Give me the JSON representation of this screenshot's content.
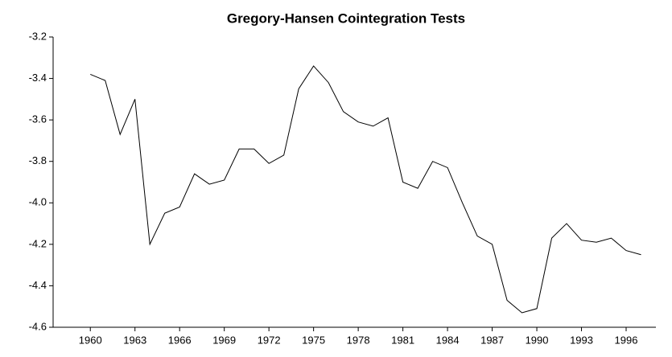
{
  "chart_data": {
    "type": "line",
    "title": "Gregory-Hansen Cointegration Tests",
    "x": [
      1960,
      1961,
      1962,
      1963,
      1964,
      1965,
      1966,
      1967,
      1968,
      1969,
      1970,
      1971,
      1972,
      1973,
      1974,
      1975,
      1976,
      1977,
      1978,
      1979,
      1980,
      1981,
      1982,
      1983,
      1984,
      1985,
      1986,
      1987,
      1988,
      1989,
      1990,
      1991,
      1992,
      1993,
      1994,
      1995,
      1996,
      1997
    ],
    "series": [
      {
        "color": "#000000",
        "values": [
          -3.38,
          -3.41,
          -3.67,
          -3.5,
          -4.2,
          -4.05,
          -4.02,
          -3.86,
          -3.91,
          -3.89,
          -3.74,
          -3.74,
          -3.81,
          -3.77,
          -3.45,
          -3.34,
          -3.42,
          -3.56,
          -3.61,
          -3.63,
          -3.59,
          -3.9,
          -3.93,
          -3.8,
          -3.83,
          -4.0,
          -4.16,
          -4.2,
          -4.47,
          -4.53,
          -4.51,
          -4.17,
          -4.1,
          -4.18,
          -4.19,
          -4.17,
          -4.23,
          -4.25
        ]
      }
    ],
    "xlim": [
      1957.5,
      1998
    ],
    "xticks": [
      1960,
      1963,
      1966,
      1969,
      1972,
      1975,
      1978,
      1981,
      1984,
      1987,
      1990,
      1993,
      1996
    ],
    "ylim": [
      -4.6,
      -3.2
    ],
    "yticks": [
      -3.2,
      -3.4,
      -3.6,
      -3.8,
      {
        "value": -4,
        "label": "-4.0"
      },
      -4.2,
      -4.4,
      -4.6
    ],
    "grid": false
  }
}
